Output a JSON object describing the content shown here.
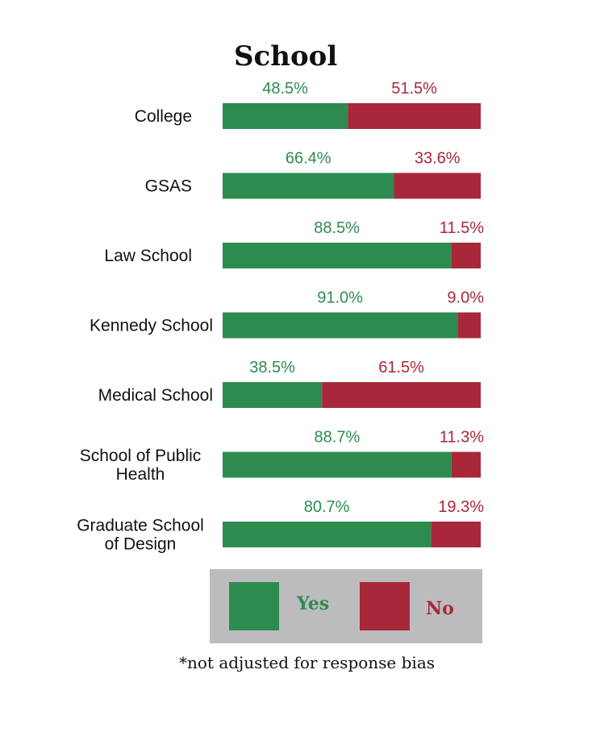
{
  "chart_data": {
    "type": "bar",
    "stacked": true,
    "orientation": "horizontal",
    "title": "School",
    "categories": [
      [
        "College"
      ],
      [
        "GSAS"
      ],
      [
        "Law School"
      ],
      [
        "Kennedy School"
      ],
      [
        "Medical School"
      ],
      [
        "School of Public",
        "Health"
      ],
      [
        "Graduate School",
        "of Design"
      ]
    ],
    "series": [
      {
        "name": "Yes",
        "values": [
          48.5,
          66.4,
          88.5,
          91.0,
          38.5,
          88.7,
          80.7
        ],
        "labels": [
          "48.5%",
          "66.4%",
          "88.5%",
          "91.0%",
          "38.5%",
          "88.7%",
          "80.7%"
        ]
      },
      {
        "name": "No",
        "values": [
          51.5,
          33.6,
          11.5,
          9.0,
          61.5,
          11.3,
          19.3
        ],
        "labels": [
          "51.5%",
          "33.6%",
          "11.5%",
          "9.0%",
          "61.5%",
          "11.3%",
          "19.3%"
        ]
      }
    ],
    "xlim": [
      0,
      100
    ],
    "legend_position": "bottom",
    "colors": {
      "yes": "#2e8b4f",
      "no": "#a8283a",
      "legend_bg": "#bcbcbe"
    }
  },
  "legend": {
    "yes_label": "Yes",
    "no_label": "No"
  },
  "footnote": "*not adjusted for response bias"
}
